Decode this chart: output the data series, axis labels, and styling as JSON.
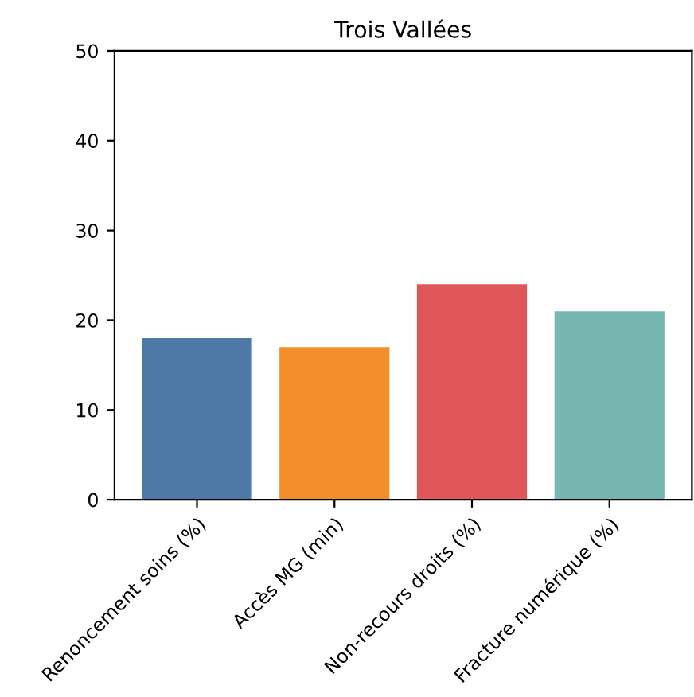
{
  "chart_data": {
    "type": "bar",
    "title": "Trois Vallées",
    "categories": [
      "Renoncement soins (%)",
      "Accès MG (min)",
      "Non-recours droits (%)",
      "Fracture numérique (%)"
    ],
    "values": [
      18,
      17,
      24,
      21
    ],
    "colors": [
      "#4e79a7",
      "#f28e2b",
      "#e15759",
      "#76b7b2"
    ],
    "ylim": [
      0,
      50
    ],
    "yticks": [
      0,
      10,
      20,
      30,
      40,
      50
    ],
    "grid": false
  }
}
